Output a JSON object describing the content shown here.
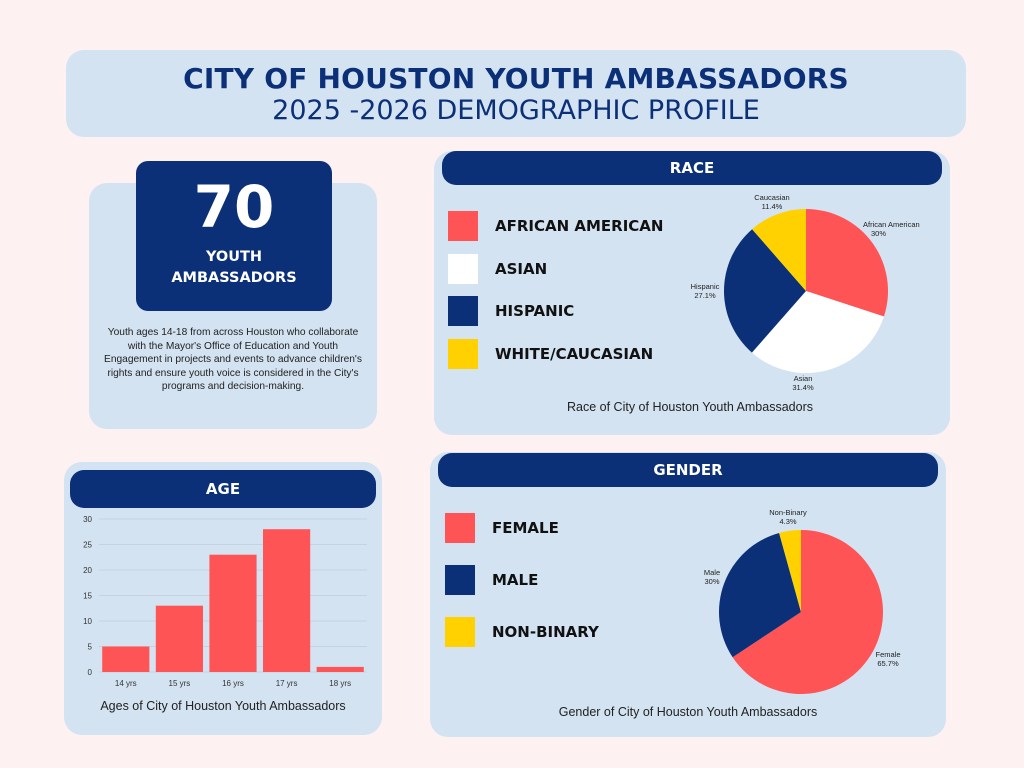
{
  "title": {
    "main": "CITY OF HOUSTON YOUTH AMBASSADORS",
    "sub": "2025 -2026 DEMOGRAPHIC PROFILE"
  },
  "summary": {
    "count": "70",
    "label_line1": "YOUTH",
    "label_line2": "AMBASSADORS",
    "description": "Youth ages 14-18 from across Houston who collaborate with the Mayor's Office of Education and Youth Engagement in projects and events to advance children's rights and ensure youth voice is considered in the City's programs and decision-making."
  },
  "colors": {
    "red": "#fe5455",
    "white": "#ffffff",
    "navy": "#0c3078",
    "yellow": "#ffd100"
  },
  "chart_data": [
    {
      "type": "pie",
      "header": "RACE",
      "title": "Race of City of Houston Youth Ambassadors",
      "legend": [
        {
          "label": "AFRICAN AMERICAN",
          "color": "#fe5455"
        },
        {
          "label": "ASIAN",
          "color": "#ffffff"
        },
        {
          "label": "HISPANIC",
          "color": "#0c3078"
        },
        {
          "label": "WHITE/CAUCASIAN",
          "color": "#ffd100"
        }
      ],
      "slices": [
        {
          "name": "African American",
          "value": 30,
          "pct_label": "30%",
          "color": "#fe5455"
        },
        {
          "name": "Asian",
          "value": 31.4,
          "pct_label": "31.4%",
          "color": "#ffffff"
        },
        {
          "name": "Hispanic",
          "value": 27.1,
          "pct_label": "27.1%",
          "color": "#0c3078"
        },
        {
          "name": "Caucasian",
          "value": 11.4,
          "pct_label": "11.4%",
          "color": "#ffd100"
        }
      ]
    },
    {
      "type": "bar",
      "header": "AGE",
      "title": "Ages of City of Houston Youth Ambassadors",
      "categories": [
        "14 yrs",
        "15 yrs",
        "16 yrs",
        "17 yrs",
        "18 yrs"
      ],
      "values": [
        5,
        13,
        23,
        28,
        1
      ],
      "ylim": [
        0,
        30
      ],
      "yticks": [
        "0",
        "5",
        "10",
        "15",
        "20",
        "25",
        "30"
      ],
      "grid": true,
      "color": "#fe5455"
    },
    {
      "type": "pie",
      "header": "GENDER",
      "title": "Gender of City of Houston Youth Ambassadors",
      "legend": [
        {
          "label": "FEMALE",
          "color": "#fe5455"
        },
        {
          "label": "MALE",
          "color": "#0c3078"
        },
        {
          "label": "NON-BINARY",
          "color": "#ffd100"
        }
      ],
      "slices": [
        {
          "name": "Female",
          "value": 65.7,
          "pct_label": "65.7%",
          "color": "#fe5455"
        },
        {
          "name": "Male",
          "value": 30,
          "pct_label": "30%",
          "color": "#0c3078"
        },
        {
          "name": "Non-Binary",
          "value": 4.3,
          "pct_label": "4.3%",
          "color": "#ffd100"
        }
      ]
    }
  ]
}
